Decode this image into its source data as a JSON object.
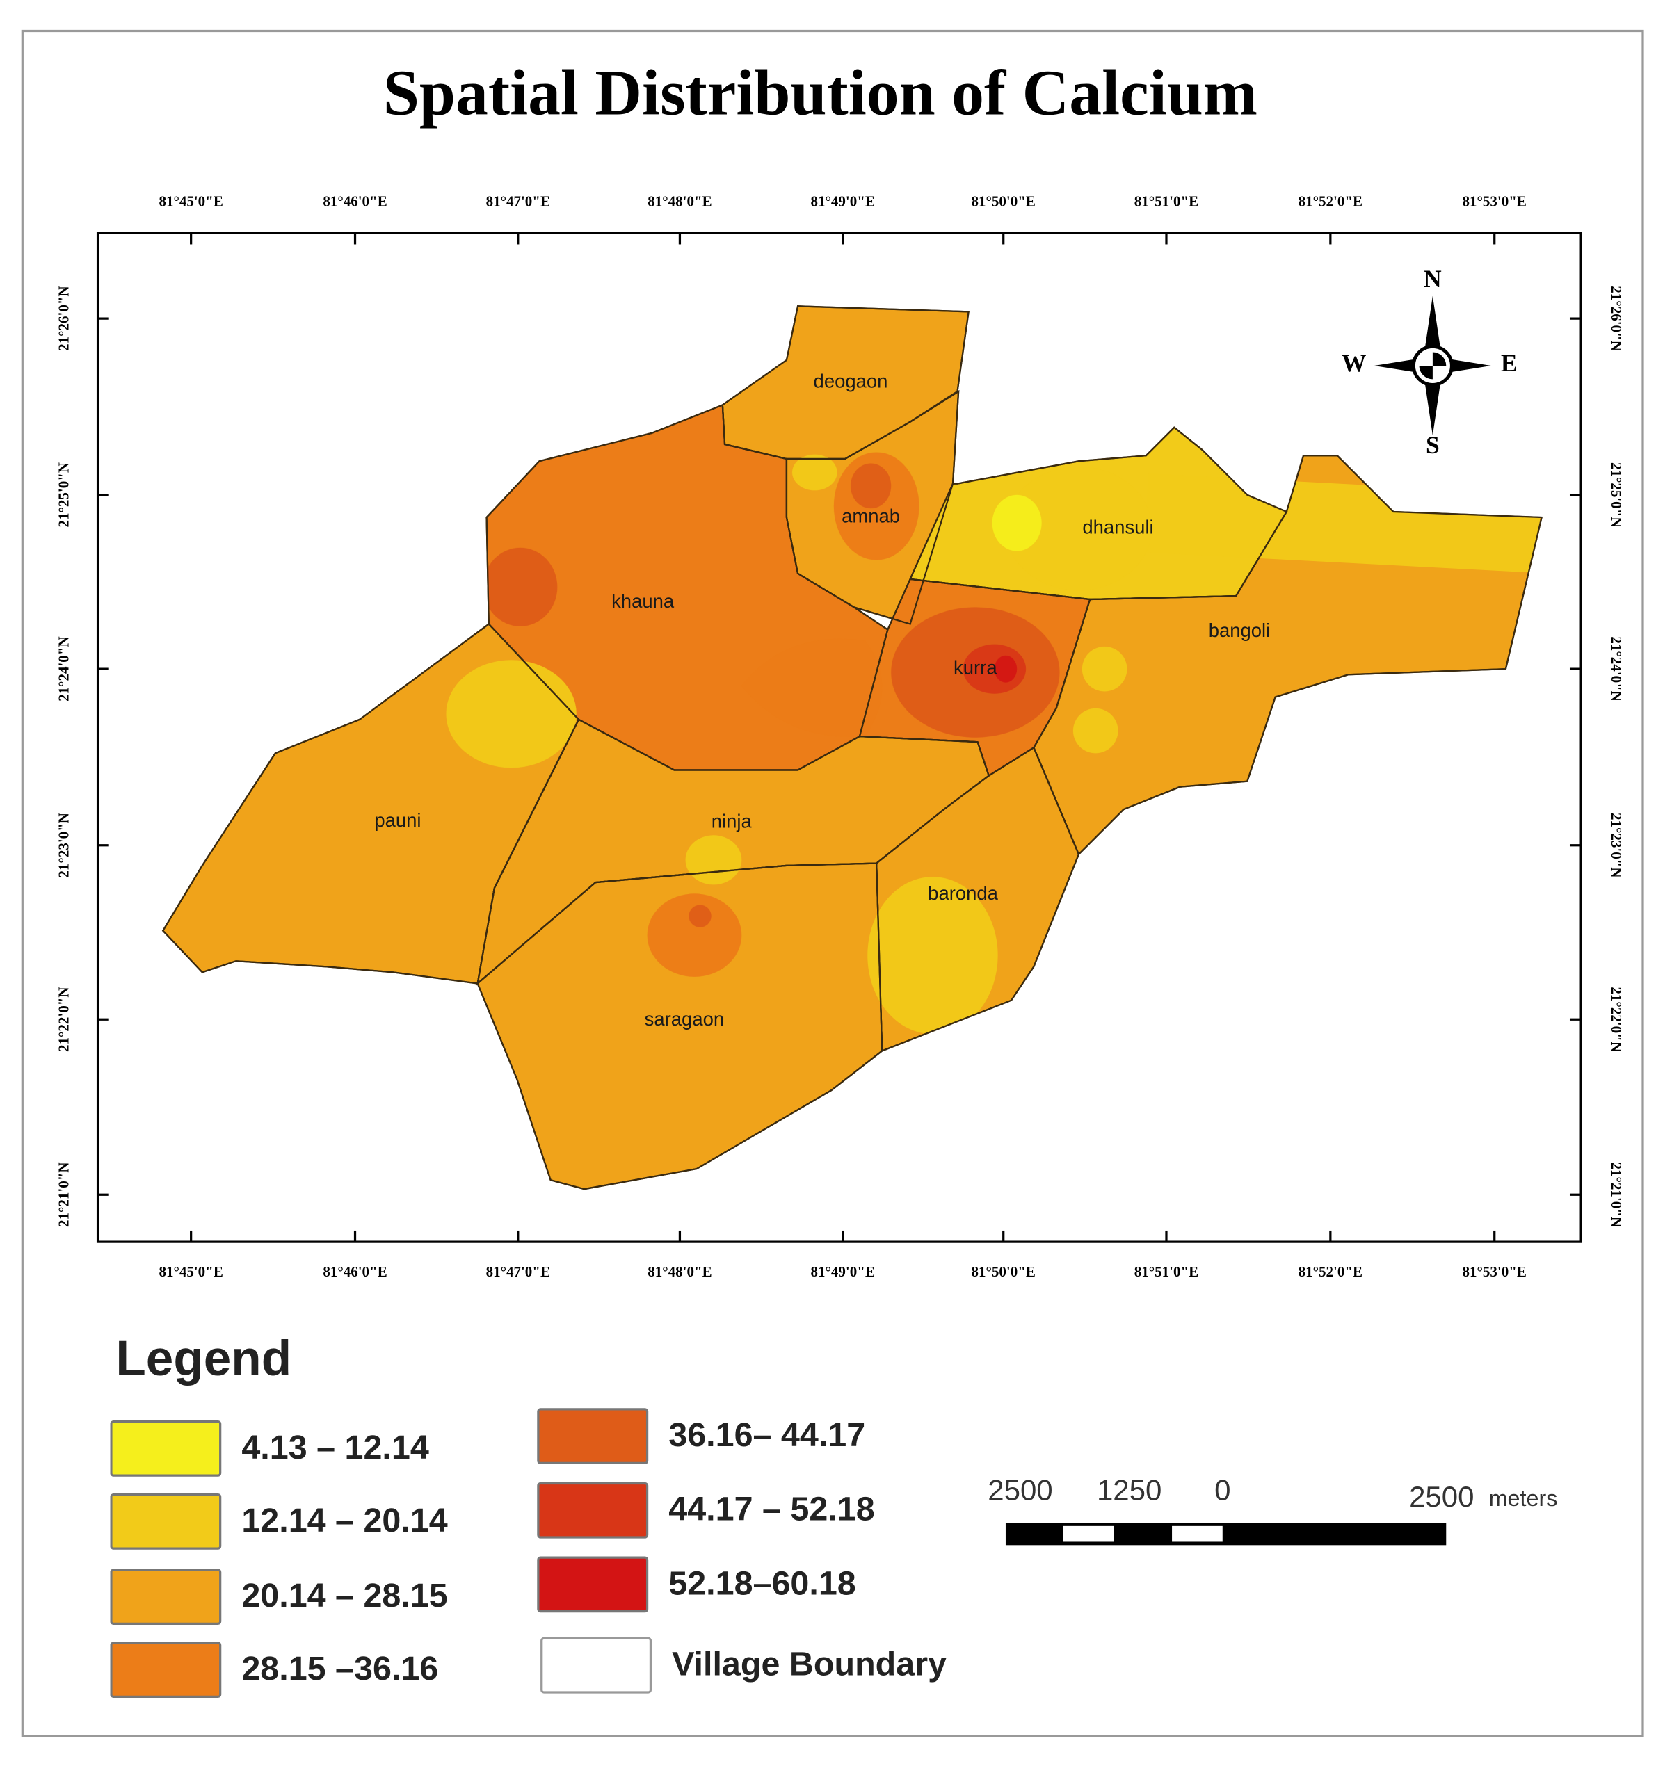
{
  "title": "Spatial Distribution of Calcium",
  "map": {
    "longitude_labels": [
      "81°45'0\"E",
      "81°46'0\"E",
      "81°47'0\"E",
      "81°48'0\"E",
      "81°49'0\"E",
      "81°50'0\"E",
      "81°51'0\"E",
      "81°52'0\"E",
      "81°53'0\"E"
    ],
    "latitude_labels": [
      "21°26'0\"N",
      "21°25'0\"N",
      "21°24'0\"N",
      "21°23'0\"N",
      "21°22'0\"N",
      "21°21'0\"N"
    ],
    "villages": [
      "deogaon",
      "amnab",
      "khauna",
      "dhansuli",
      "bangoli",
      "kurra",
      "pauni",
      "ninja",
      "baronda",
      "saragaon"
    ],
    "compass": {
      "n": "N",
      "e": "E",
      "s": "S",
      "w": "W"
    }
  },
  "legend": {
    "title": "Legend",
    "items": [
      {
        "label": "4.13 – 12.14",
        "color": "#f5ef1c"
      },
      {
        "label": "12.14 – 20.14",
        "color": "#f2cb19"
      },
      {
        "label": "20.14 – 28.15",
        "color": "#f0a31a"
      },
      {
        "label": "28.15 –36.16",
        "color": "#ec7d18"
      },
      {
        "label": "36.16– 44.17",
        "color": "#df5c18"
      },
      {
        "label": "44.17 – 52.18",
        "color": "#d83617"
      },
      {
        "label": "52.18–60.18",
        "color": "#d31414"
      },
      {
        "label": "Village Boundary",
        "color": "#ffffff"
      }
    ]
  },
  "scale_bar": {
    "labels": [
      "2500",
      "1250",
      "0",
      "2500"
    ],
    "unit": "meters"
  }
}
